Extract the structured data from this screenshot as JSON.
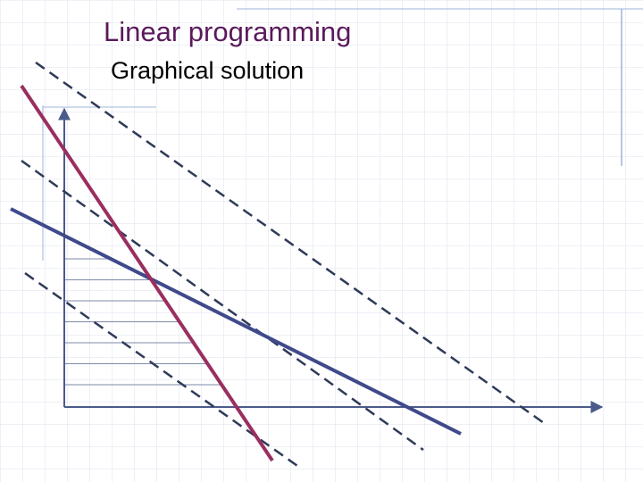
{
  "slide": {
    "title": "Linear programming",
    "subtitle": "Graphical solution"
  },
  "colors": {
    "title": "#5a1a5c",
    "subtitle": "#000000",
    "grid": "#dde2ee",
    "accent_line": "#9fb4d8",
    "axes": "#4a5a8a",
    "constraint_blue": "#3f4a8c",
    "constraint_red": "#9a2f5f",
    "objective_dashed": "#2f3a58",
    "hatch": "#7e8aa8"
  }
}
